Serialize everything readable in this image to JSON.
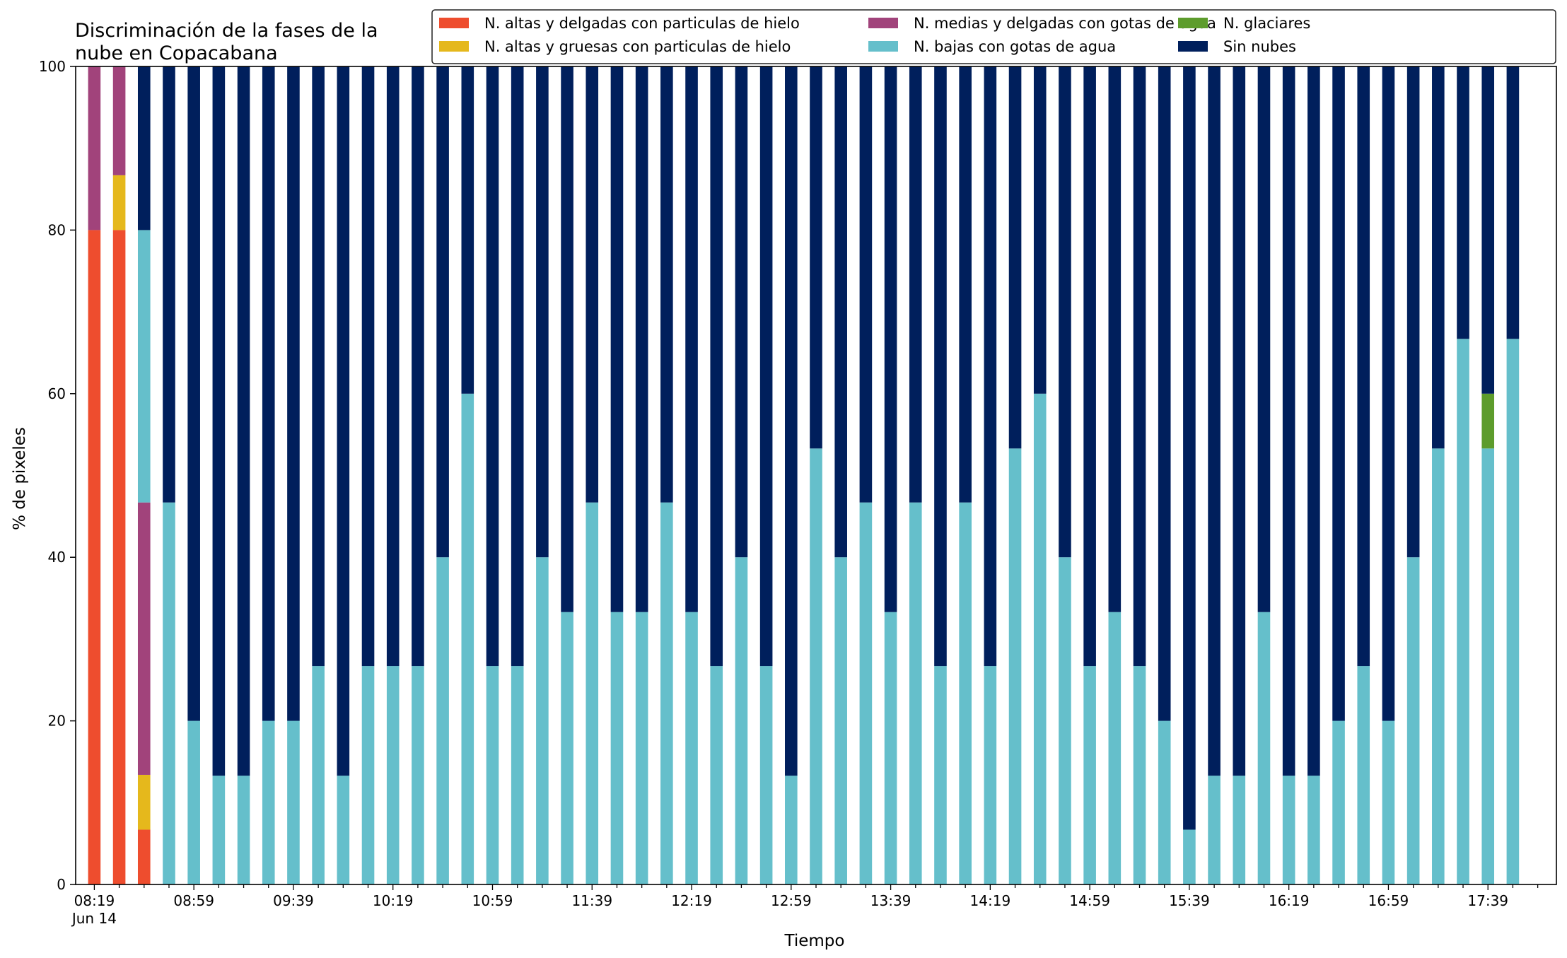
{
  "chart_data": {
    "type": "bar",
    "stacked": true,
    "title": "Discriminación de la fases de la nube en Copacabana",
    "title_lines": [
      "Discriminación de la fases de la",
      "nube en Copacabana"
    ],
    "xlabel": "Tiempo",
    "ylabel": "% de pixeles",
    "ylim": [
      0,
      100
    ],
    "yticks": [
      0,
      20,
      40,
      60,
      80,
      100
    ],
    "grid": false,
    "legend_position": "top-right",
    "x_date_label": "Jun 14",
    "categories": [
      "08:19",
      "08:29",
      "08:39",
      "08:49",
      "08:59",
      "09:09",
      "09:19",
      "09:29",
      "09:39",
      "09:49",
      "09:59",
      "10:09",
      "10:19",
      "10:29",
      "10:39",
      "10:49",
      "10:59",
      "11:09",
      "11:19",
      "11:29",
      "11:39",
      "11:49",
      "11:59",
      "12:09",
      "12:19",
      "12:29",
      "12:39",
      "12:49",
      "12:59",
      "13:09",
      "13:19",
      "13:29",
      "13:39",
      "13:49",
      "13:59",
      "14:09",
      "14:19",
      "14:29",
      "14:39",
      "14:49",
      "14:59",
      "15:09",
      "15:19",
      "15:29",
      "15:39",
      "15:49",
      "15:59",
      "16:09",
      "16:19",
      "16:29",
      "16:39",
      "16:49",
      "16:59",
      "17:09",
      "17:19",
      "17:29",
      "17:39",
      "17:49"
    ],
    "tick_labels": [
      "08:19",
      "08:59",
      "09:39",
      "10:19",
      "10:59",
      "11:39",
      "12:19",
      "12:59",
      "13:39",
      "14:19",
      "14:59",
      "15:39",
      "16:19",
      "16:59",
      "17:39"
    ],
    "legend_order": [
      0,
      2,
      4,
      1,
      3,
      5
    ],
    "series": [
      {
        "name": "N. altas y delgadas con particulas de hielo",
        "color": "#ee4d2e",
        "values": [
          80,
          80,
          6.7,
          0,
          0,
          0,
          0,
          0,
          0,
          0,
          0,
          0,
          0,
          0,
          0,
          0,
          0,
          0,
          0,
          0,
          0,
          0,
          0,
          0,
          0,
          0,
          0,
          0,
          0,
          0,
          0,
          0,
          0,
          0,
          0,
          0,
          0,
          0,
          0,
          0,
          0,
          0,
          0,
          0,
          0,
          0,
          0,
          0,
          0,
          0,
          0,
          0,
          0,
          0,
          0,
          0,
          0,
          0
        ]
      },
      {
        "name": "N. altas y gruesas con particulas de hielo",
        "color": "#e5b81c",
        "values": [
          0,
          6.7,
          6.7,
          0,
          0,
          0,
          0,
          0,
          0,
          0,
          0,
          0,
          0,
          0,
          0,
          0,
          0,
          0,
          0,
          0,
          0,
          0,
          0,
          0,
          0,
          0,
          0,
          0,
          0,
          0,
          0,
          0,
          0,
          0,
          0,
          0,
          0,
          0,
          0,
          0,
          0,
          0,
          0,
          0,
          0,
          0,
          0,
          0,
          0,
          0,
          0,
          0,
          0,
          0,
          0,
          0,
          0,
          0
        ]
      },
      {
        "name": "N. medias y delgadas con gotas de agua",
        "color": "#a1437b",
        "values": [
          20,
          13.3,
          33.3,
          0,
          0,
          0,
          0,
          0,
          0,
          0,
          0,
          0,
          0,
          0,
          0,
          0,
          0,
          0,
          0,
          0,
          0,
          0,
          0,
          0,
          0,
          0,
          0,
          0,
          0,
          0,
          0,
          0,
          0,
          0,
          0,
          0,
          0,
          0,
          0,
          0,
          0,
          0,
          0,
          0,
          0,
          0,
          0,
          0,
          0,
          0,
          0,
          0,
          0,
          0,
          0,
          0,
          0,
          0
        ]
      },
      {
        "name": "N. bajas con gotas de agua",
        "color": "#65bfcb",
        "values": [
          0,
          0,
          33.3,
          46.7,
          20,
          13.3,
          13.3,
          20,
          20,
          26.7,
          13.3,
          26.7,
          26.7,
          26.7,
          40,
          60,
          26.7,
          26.7,
          40,
          33.3,
          46.7,
          33.3,
          33.3,
          46.7,
          33.3,
          26.7,
          40,
          26.7,
          13.3,
          53.3,
          40,
          46.7,
          33.3,
          46.7,
          26.7,
          46.7,
          26.7,
          53.3,
          60,
          40,
          26.7,
          33.3,
          26.7,
          20,
          6.7,
          13.3,
          13.3,
          33.3,
          13.3,
          13.3,
          20,
          26.7,
          20,
          40,
          53.3,
          66.7,
          53.3,
          66.7
        ]
      },
      {
        "name": "N. glaciares",
        "color": "#5d9c2c",
        "values": [
          0,
          0,
          0,
          0,
          0,
          0,
          0,
          0,
          0,
          0,
          0,
          0,
          0,
          0,
          0,
          0,
          0,
          0,
          0,
          0,
          0,
          0,
          0,
          0,
          0,
          0,
          0,
          0,
          0,
          0,
          0,
          0,
          0,
          0,
          0,
          0,
          0,
          0,
          0,
          0,
          0,
          0,
          0,
          0,
          0,
          0,
          0,
          0,
          0,
          0,
          0,
          0,
          0,
          0,
          0,
          0,
          6.7,
          0
        ]
      },
      {
        "name": "Sin nubes",
        "color": "#001f5c",
        "values": [
          0,
          0,
          20,
          53.3,
          80,
          86.7,
          86.7,
          80,
          80,
          73.3,
          86.7,
          73.3,
          73.3,
          73.3,
          60,
          40,
          73.3,
          73.3,
          60,
          66.7,
          53.3,
          66.7,
          66.7,
          53.3,
          66.7,
          73.3,
          60,
          73.3,
          86.7,
          46.7,
          60,
          53.3,
          66.7,
          53.3,
          73.3,
          53.3,
          73.3,
          46.7,
          40,
          60,
          73.3,
          66.7,
          73.3,
          80,
          93.3,
          86.7,
          86.7,
          66.7,
          86.7,
          86.7,
          80,
          73.3,
          80,
          60,
          46.7,
          33.3,
          40,
          33.3
        ]
      }
    ]
  }
}
